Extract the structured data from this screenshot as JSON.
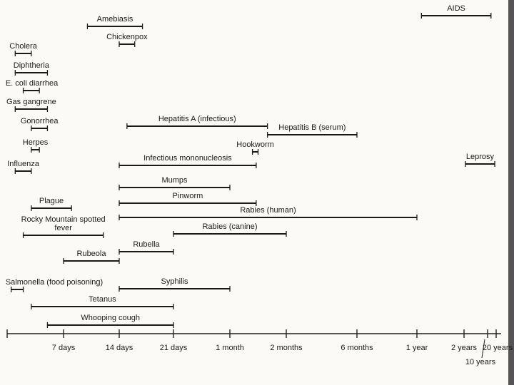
{
  "chart_data": {
    "type": "range",
    "categories": [
      "Amebiasis",
      "Chickenpox",
      "AIDS",
      "Cholera",
      "Diphtheria",
      "E. coli diarrhea",
      "Gas gangrene",
      "Gonorrhea",
      "Herpes",
      "Influenza",
      "Hepatitis A (infectious)",
      "Hepatitis B (serum)",
      "Hookworm",
      "Infectious mononucleosis",
      "Leprosy",
      "Mumps",
      "Pinworm",
      "Plague",
      "Rabies (human)",
      "Rocky Mountain spotted fever",
      "Rabies (canine)",
      "Rubella",
      "Rubeola",
      "Salmonella (food poisoning)",
      "Syphilis",
      "Tetanus",
      "Whooping cough"
    ],
    "values": [
      [
        10,
        17
      ],
      [
        14,
        16
      ],
      [
        400,
        5100
      ],
      [
        1,
        3
      ],
      [
        1,
        5
      ],
      [
        2,
        4
      ],
      [
        1,
        5
      ],
      [
        3,
        5
      ],
      [
        3,
        4
      ],
      [
        1,
        3
      ],
      [
        15,
        50
      ],
      [
        50,
        180
      ],
      [
        42,
        45
      ],
      [
        14,
        44
      ],
      [
        900,
        6700
      ],
      [
        14,
        30
      ],
      [
        14,
        44
      ],
      [
        3,
        8
      ],
      [
        14,
        365
      ],
      [
        2,
        12
      ],
      [
        21,
        60
      ],
      [
        14,
        21
      ],
      [
        7,
        14
      ],
      [
        0.5,
        2
      ],
      [
        14,
        30
      ],
      [
        3,
        21
      ],
      [
        5,
        21
      ]
    ],
    "color": "#1a1a1a",
    "xlim": [
      0,
      7300
    ],
    "xticks": [
      {
        "value": 7,
        "label": "7 days"
      },
      {
        "value": 14,
        "label": "14 days"
      },
      {
        "value": 21,
        "label": "21 days"
      },
      {
        "value": 30,
        "label": "1 month"
      },
      {
        "value": 60,
        "label": "2 months"
      },
      {
        "value": 180,
        "label": "6 months"
      },
      {
        "value": 365,
        "label": "1 year"
      },
      {
        "value": 730,
        "label": "2 years"
      },
      {
        "value": 3650,
        "label": "10 years"
      },
      {
        "value": 7300,
        "label": "20 years"
      }
    ]
  }
}
